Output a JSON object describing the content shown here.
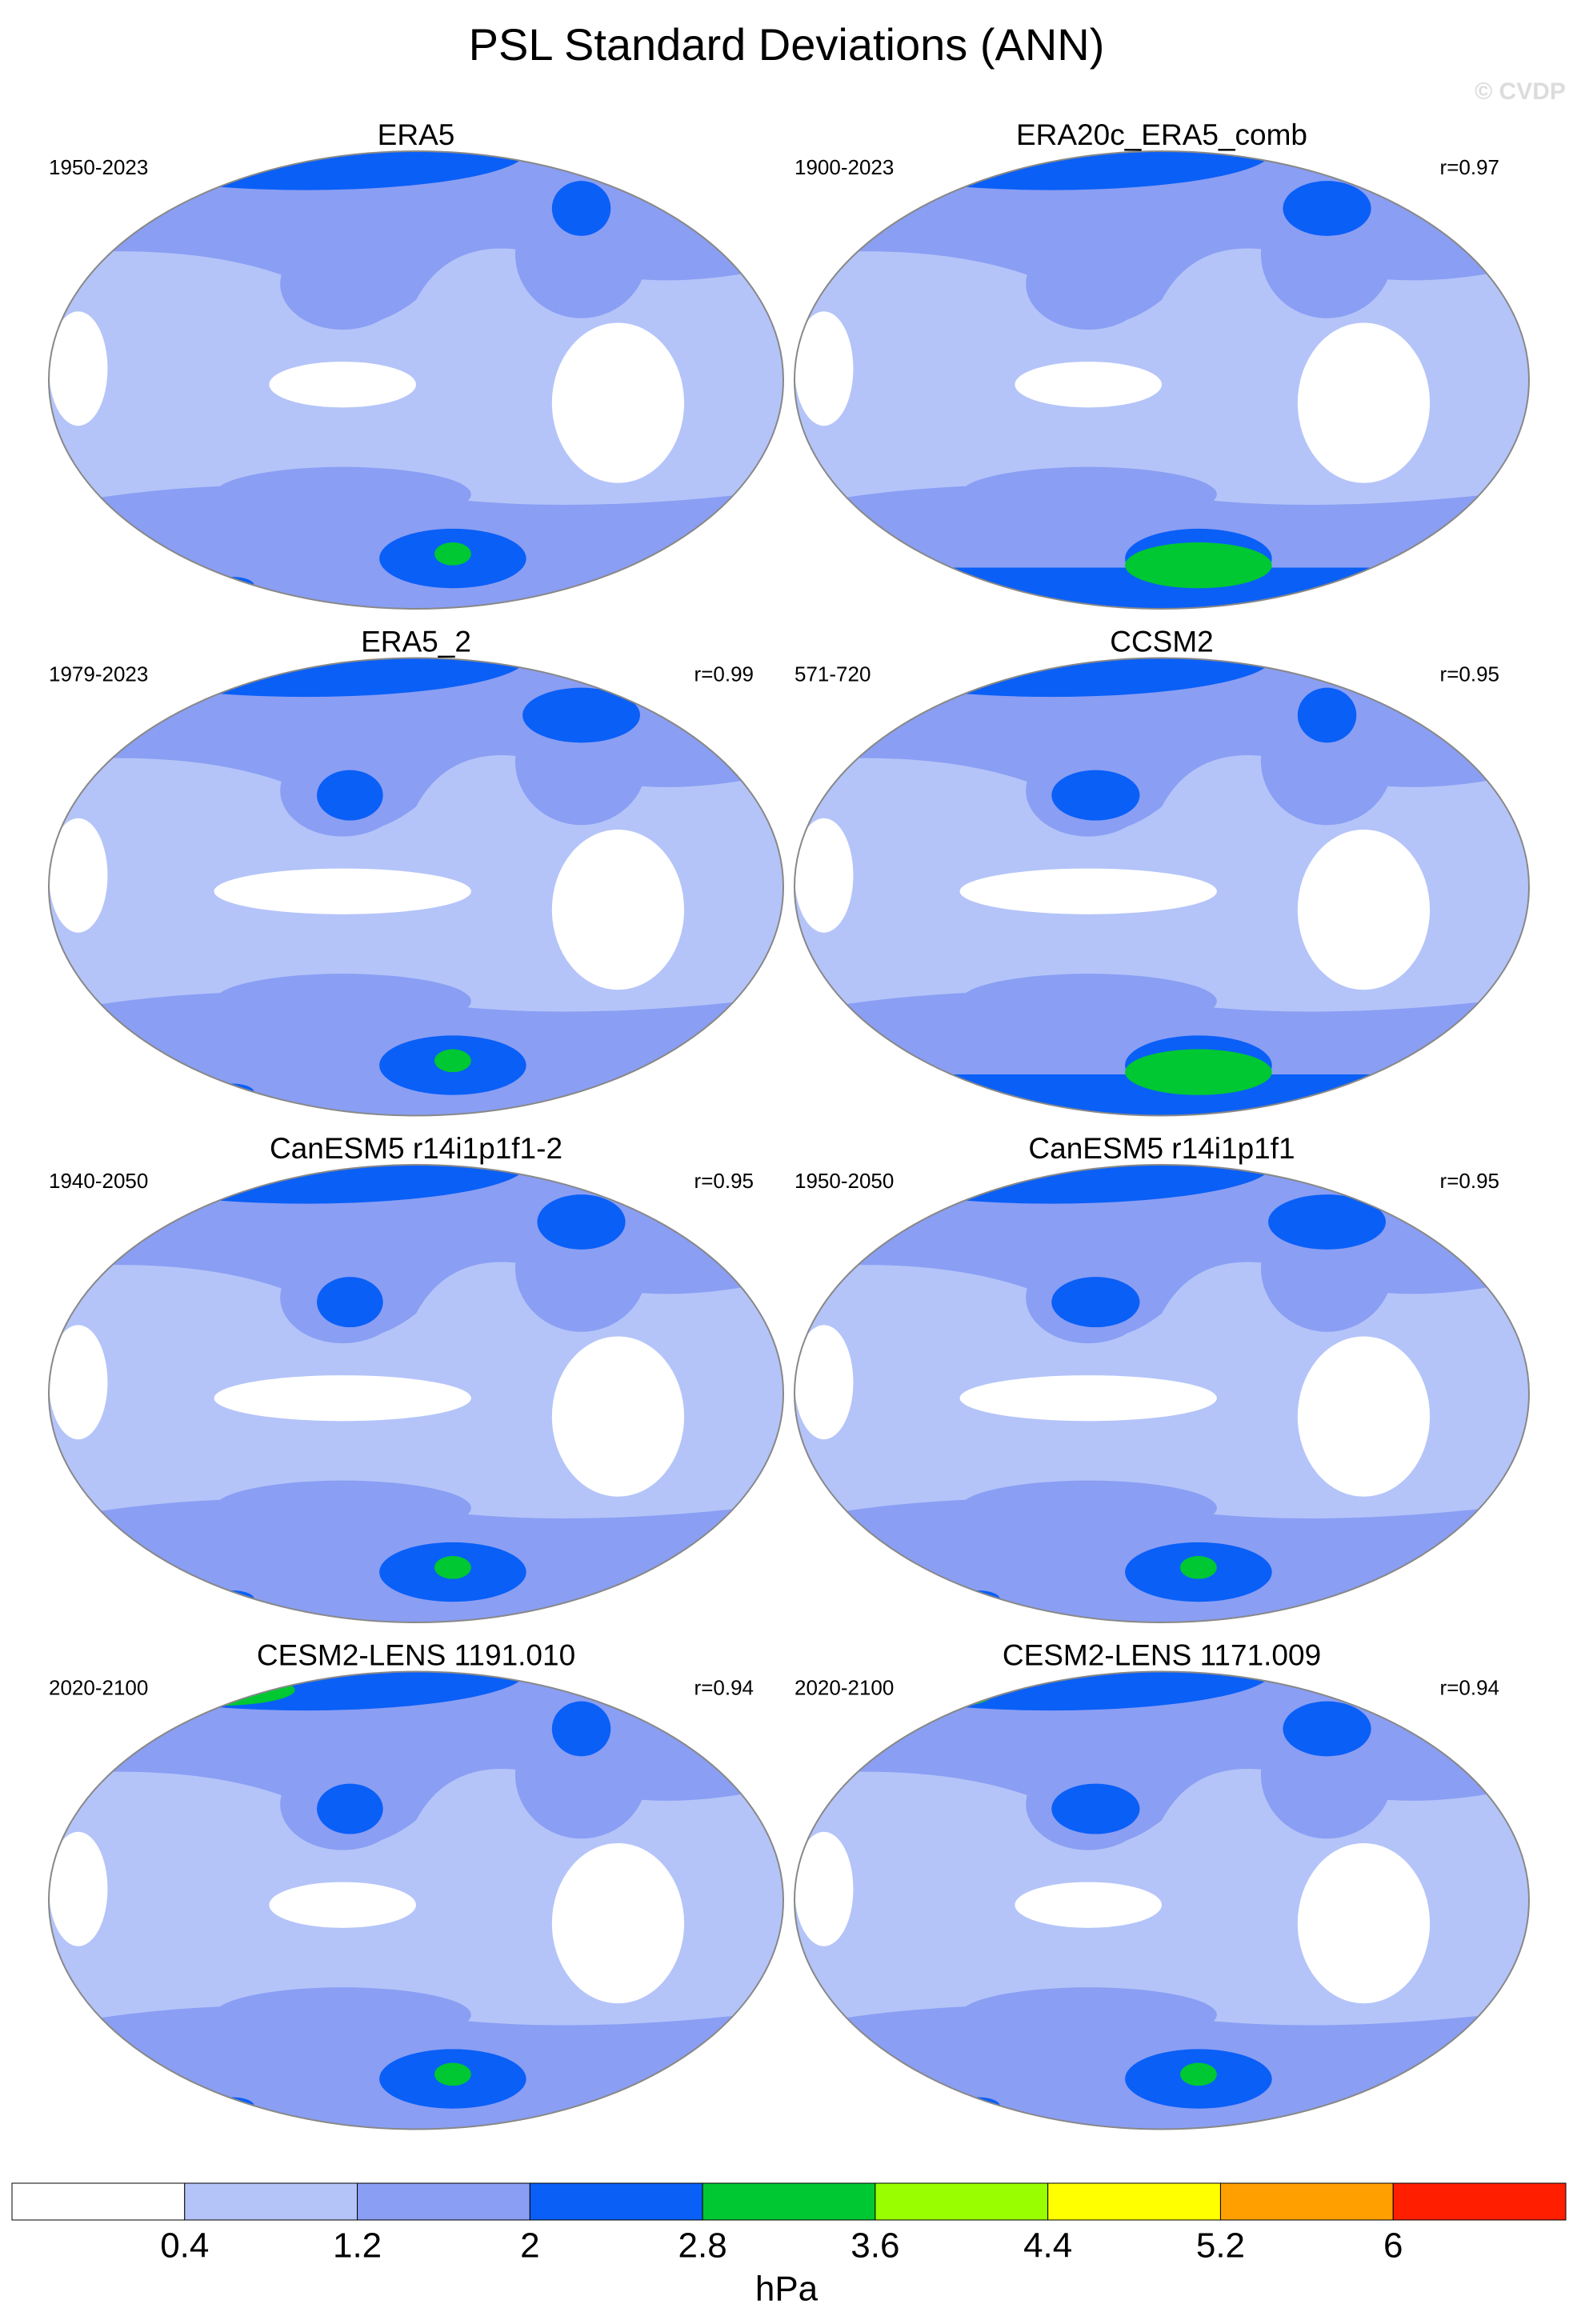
{
  "title": "PSL Standard Deviations (ANN)",
  "watermark": "© CVDP",
  "panels": [
    {
      "title": "ERA5",
      "period": "1950-2023"
    },
    {
      "title": "ERA20c_ERA5_comb",
      "period": "1900-2023",
      "r": "r=0.97"
    },
    {
      "title": "ERA5_2",
      "period": "1979-2023",
      "r": "r=0.99"
    },
    {
      "title": "CCSM2",
      "period": "571-720",
      "r": "r=0.95"
    },
    {
      "title": "CanESM5 r14i1p1f1-2",
      "period": "1940-2050",
      "r": "r=0.95"
    },
    {
      "title": "CanESM5 r14i1p1f1",
      "period": "1950-2050",
      "r": "r=0.95"
    },
    {
      "title": "CESM2-LENS 1191.010",
      "period": "2020-2100",
      "r": "r=0.94"
    },
    {
      "title": "CESM2-LENS 1171.009",
      "period": "2020-2100",
      "r": "r=0.94"
    }
  ],
  "colorbar": {
    "ticks": [
      0.4,
      1.2,
      2,
      2.8,
      3.6,
      4.4,
      5.2,
      6
    ],
    "colors": [
      "#ffffff",
      "#b4c4f9",
      "#8a9ef3",
      "#0a5ff6",
      "#00c832",
      "#99ff00",
      "#ffff00",
      "#ffa000",
      "#ff1e00"
    ],
    "label": "hPa"
  }
}
